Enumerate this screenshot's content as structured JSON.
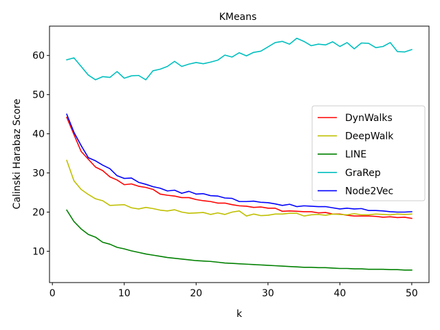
{
  "chart_data": {
    "type": "line",
    "title": "KMeans",
    "xlabel": "k",
    "ylabel": "Calinski Harabaz Score",
    "xlim": [
      -0.4,
      52.4
    ],
    "ylim": [
      2.0,
      67.5
    ],
    "xticks": [
      0,
      10,
      20,
      30,
      40,
      50
    ],
    "yticks": [
      10,
      20,
      30,
      40,
      50,
      60
    ],
    "grid": false,
    "legend_position": "center-right",
    "x": [
      2,
      3,
      4,
      5,
      6,
      7,
      8,
      9,
      10,
      11,
      12,
      13,
      14,
      15,
      16,
      17,
      18,
      19,
      20,
      21,
      22,
      23,
      24,
      25,
      26,
      27,
      28,
      29,
      30,
      31,
      32,
      33,
      34,
      35,
      36,
      37,
      38,
      39,
      40,
      41,
      42,
      43,
      44,
      45,
      46,
      47,
      48,
      49,
      50
    ],
    "series": [
      {
        "name": "DynWalks",
        "color": "#ff0000",
        "values": [
          44.2,
          39.8,
          35.5,
          33.5,
          31.5,
          30.6,
          29.0,
          28.2,
          27.0,
          27.2,
          26.6,
          26.3,
          25.8,
          24.6,
          24.3,
          24.1,
          23.7,
          23.7,
          23.2,
          22.9,
          22.7,
          22.3,
          22.3,
          21.9,
          21.6,
          21.5,
          21.2,
          21.3,
          21.0,
          21.0,
          20.2,
          20.3,
          20.2,
          20.1,
          20.1,
          19.8,
          19.9,
          19.5,
          19.5,
          19.2,
          19.0,
          19.0,
          19.0,
          18.9,
          18.7,
          18.8,
          18.6,
          18.7,
          18.4
        ]
      },
      {
        "name": "DeepWalk",
        "color": "#bfbf00",
        "values": [
          33.2,
          28.0,
          25.8,
          24.5,
          23.4,
          22.9,
          21.7,
          21.8,
          21.9,
          21.1,
          20.8,
          21.2,
          20.9,
          20.5,
          20.3,
          20.6,
          20.0,
          19.7,
          19.8,
          19.9,
          19.4,
          19.8,
          19.4,
          20.0,
          20.3,
          19.0,
          19.5,
          19.1,
          19.2,
          19.5,
          19.5,
          19.7,
          19.7,
          19.0,
          19.3,
          19.4,
          19.2,
          19.5,
          19.4,
          19.3,
          19.6,
          19.3,
          19.3,
          19.5,
          19.4,
          19.3,
          19.5,
          19.4,
          19.5
        ]
      },
      {
        "name": "LINE",
        "color": "#008000",
        "values": [
          20.5,
          17.6,
          15.7,
          14.3,
          13.6,
          12.3,
          11.8,
          11.0,
          10.6,
          10.1,
          9.7,
          9.3,
          9.0,
          8.7,
          8.4,
          8.2,
          8.0,
          7.8,
          7.6,
          7.5,
          7.4,
          7.2,
          7.0,
          6.9,
          6.8,
          6.7,
          6.6,
          6.5,
          6.4,
          6.3,
          6.2,
          6.1,
          6.0,
          5.9,
          5.9,
          5.8,
          5.8,
          5.7,
          5.6,
          5.6,
          5.5,
          5.5,
          5.4,
          5.4,
          5.4,
          5.3,
          5.3,
          5.2,
          5.2
        ]
      },
      {
        "name": "GraRep",
        "color": "#00bfbf",
        "values": [
          58.9,
          59.4,
          57.2,
          55.0,
          53.8,
          54.6,
          54.4,
          55.9,
          54.2,
          54.8,
          54.9,
          53.8,
          56.1,
          56.5,
          57.2,
          58.5,
          57.2,
          57.8,
          58.2,
          57.9,
          58.3,
          58.8,
          60.1,
          59.6,
          60.7,
          59.9,
          60.8,
          61.1,
          62.2,
          63.3,
          63.6,
          62.9,
          64.4,
          63.6,
          62.5,
          62.9,
          62.7,
          63.5,
          62.3,
          63.3,
          61.7,
          63.2,
          63.1,
          62.0,
          62.3,
          63.3,
          61.0,
          60.9,
          61.5
        ]
      },
      {
        "name": "Node2Vec",
        "color": "#0000ff",
        "values": [
          45.0,
          40.4,
          37.0,
          33.9,
          33.1,
          32.0,
          31.1,
          29.3,
          28.6,
          28.7,
          27.6,
          27.1,
          26.5,
          26.1,
          25.4,
          25.6,
          24.8,
          25.3,
          24.6,
          24.7,
          24.2,
          24.1,
          23.6,
          23.5,
          22.7,
          22.7,
          22.8,
          22.5,
          22.4,
          22.1,
          21.7,
          22.0,
          21.4,
          21.6,
          21.5,
          21.4,
          21.4,
          21.1,
          20.8,
          21.0,
          20.8,
          20.9,
          20.4,
          20.4,
          20.3,
          20.1,
          20.0,
          20.0,
          20.1
        ]
      }
    ]
  }
}
